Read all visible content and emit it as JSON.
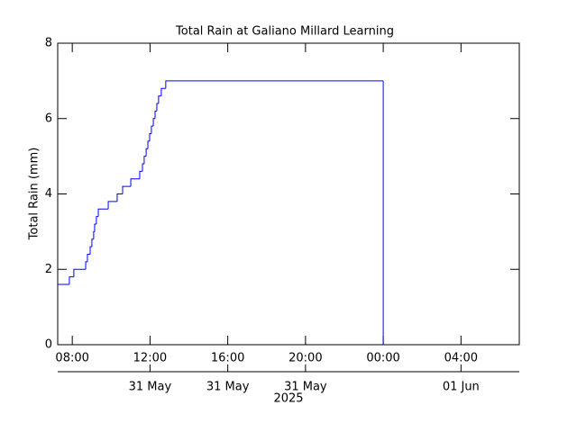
{
  "chart_data": {
    "type": "step",
    "title": "Total Rain at Galiano Millard Learning",
    "y_label": "Total Rain (mm)",
    "x_sublabel": "2025",
    "color": "#0000ff",
    "xlim": [
      7.25,
      31.0
    ],
    "ylim": [
      0,
      8
    ],
    "yticks": [
      0,
      2,
      4,
      6,
      8
    ],
    "xticks": [
      {
        "value": 8,
        "label": "08:00"
      },
      {
        "value": 12,
        "label": "12:00"
      },
      {
        "value": 16,
        "label": "16:00"
      },
      {
        "value": 20,
        "label": "20:00"
      },
      {
        "value": 24,
        "label": "00:00"
      },
      {
        "value": 28,
        "label": "04:00"
      }
    ],
    "date_ticks": [
      {
        "value": 12,
        "label": "31 May"
      },
      {
        "value": 16,
        "label": "31 May"
      },
      {
        "value": 20,
        "label": "31 May"
      },
      {
        "value": 28,
        "label": "01 Jun"
      }
    ],
    "series": [
      {
        "name": "Total Rain",
        "x": [
          7.25,
          7.85,
          8.08,
          8.69,
          8.78,
          8.92,
          9.01,
          9.1,
          9.15,
          9.24,
          9.34,
          9.85,
          10.31,
          10.59,
          11.01,
          11.47,
          11.61,
          11.7,
          11.8,
          11.89,
          11.98,
          12.07,
          12.17,
          12.26,
          12.35,
          12.44,
          12.58,
          12.81,
          24.0
        ],
        "values": [
          1.6,
          1.8,
          2.0,
          2.2,
          2.4,
          2.6,
          2.8,
          3.0,
          3.2,
          3.4,
          3.6,
          3.8,
          4.0,
          4.2,
          4.4,
          4.6,
          4.8,
          5.0,
          5.2,
          5.4,
          5.6,
          5.8,
          6.0,
          6.2,
          6.4,
          6.6,
          6.8,
          7.0,
          0
        ]
      }
    ]
  }
}
